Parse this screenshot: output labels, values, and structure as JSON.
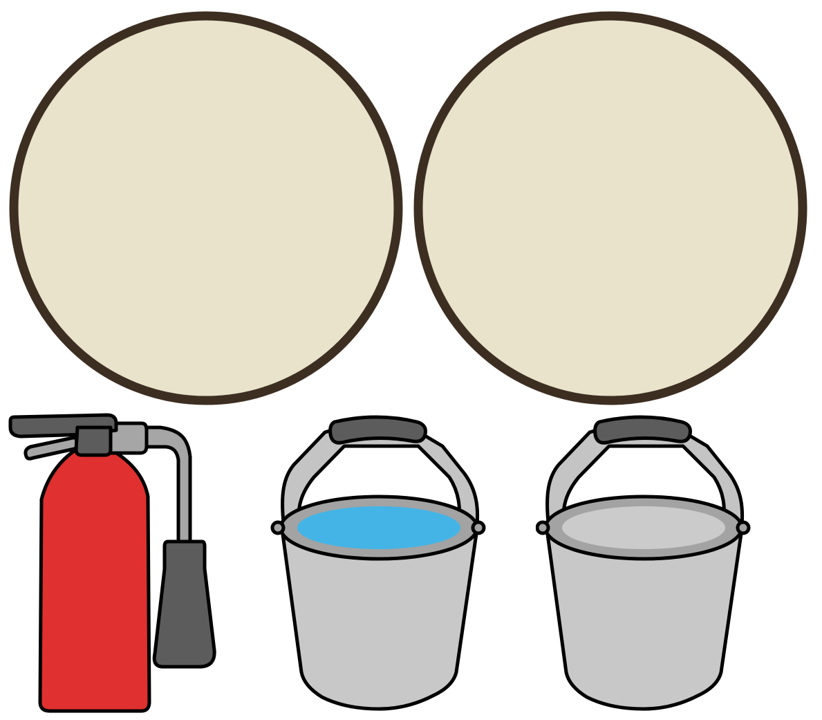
{
  "colors": {
    "background": "#ffffff",
    "circle_fill": "#e8e3ca",
    "circle_stroke": "#3d2e22",
    "outline": "#000000",
    "extinguisher_body": "#e03030",
    "metal_dark": "#5c5c5c",
    "metal_light": "#a6a6a6",
    "bucket_body": "#c8c8c8",
    "bucket_rim": "#a3a3a3",
    "bucket_handle": "#c4c4c4",
    "water": "#44b4e6",
    "empty_inside": "#cbcbcb"
  },
  "circles": [
    {
      "name": "left-drop-zone"
    },
    {
      "name": "right-drop-zone"
    }
  ],
  "items": [
    {
      "name": "fire-extinguisher",
      "icon": "fire-extinguisher-icon"
    },
    {
      "name": "bucket-with-water",
      "icon": "water-bucket-icon",
      "contents": "water"
    },
    {
      "name": "empty-bucket",
      "icon": "empty-bucket-icon",
      "contents": "empty"
    }
  ]
}
